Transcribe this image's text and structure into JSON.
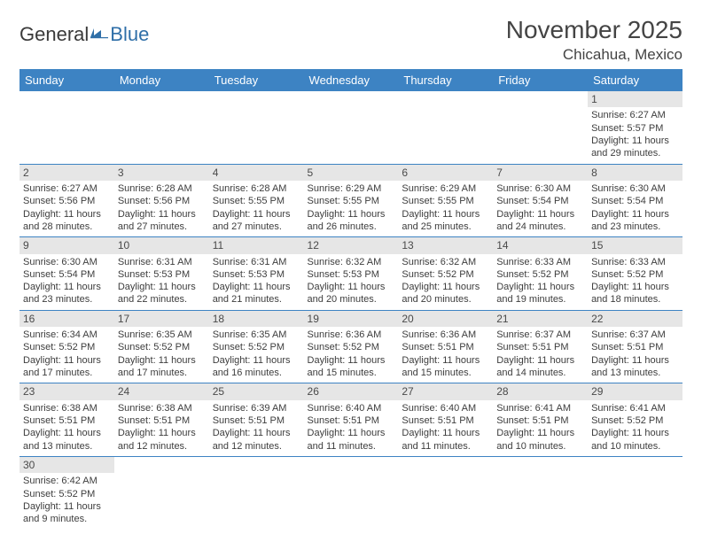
{
  "brand": {
    "part1": "General",
    "part2": "Blue"
  },
  "title": "November 2025",
  "location": "Chicahua, Mexico",
  "colors": {
    "header_bg": "#3d83c3",
    "header_text": "#ffffff",
    "daynum_bg": "#e6e6e6",
    "text": "#3d3d3d",
    "border": "#3d83c3",
    "logo_blue": "#2f6fa8"
  },
  "weekdays": [
    "Sunday",
    "Monday",
    "Tuesday",
    "Wednesday",
    "Thursday",
    "Friday",
    "Saturday"
  ],
  "weeks": [
    [
      null,
      null,
      null,
      null,
      null,
      null,
      {
        "n": "1",
        "sr": "Sunrise: 6:27 AM",
        "ss": "Sunset: 5:57 PM",
        "d1": "Daylight: 11 hours",
        "d2": "and 29 minutes."
      }
    ],
    [
      {
        "n": "2",
        "sr": "Sunrise: 6:27 AM",
        "ss": "Sunset: 5:56 PM",
        "d1": "Daylight: 11 hours",
        "d2": "and 28 minutes."
      },
      {
        "n": "3",
        "sr": "Sunrise: 6:28 AM",
        "ss": "Sunset: 5:56 PM",
        "d1": "Daylight: 11 hours",
        "d2": "and 27 minutes."
      },
      {
        "n": "4",
        "sr": "Sunrise: 6:28 AM",
        "ss": "Sunset: 5:55 PM",
        "d1": "Daylight: 11 hours",
        "d2": "and 27 minutes."
      },
      {
        "n": "5",
        "sr": "Sunrise: 6:29 AM",
        "ss": "Sunset: 5:55 PM",
        "d1": "Daylight: 11 hours",
        "d2": "and 26 minutes."
      },
      {
        "n": "6",
        "sr": "Sunrise: 6:29 AM",
        "ss": "Sunset: 5:55 PM",
        "d1": "Daylight: 11 hours",
        "d2": "and 25 minutes."
      },
      {
        "n": "7",
        "sr": "Sunrise: 6:30 AM",
        "ss": "Sunset: 5:54 PM",
        "d1": "Daylight: 11 hours",
        "d2": "and 24 minutes."
      },
      {
        "n": "8",
        "sr": "Sunrise: 6:30 AM",
        "ss": "Sunset: 5:54 PM",
        "d1": "Daylight: 11 hours",
        "d2": "and 23 minutes."
      }
    ],
    [
      {
        "n": "9",
        "sr": "Sunrise: 6:30 AM",
        "ss": "Sunset: 5:54 PM",
        "d1": "Daylight: 11 hours",
        "d2": "and 23 minutes."
      },
      {
        "n": "10",
        "sr": "Sunrise: 6:31 AM",
        "ss": "Sunset: 5:53 PM",
        "d1": "Daylight: 11 hours",
        "d2": "and 22 minutes."
      },
      {
        "n": "11",
        "sr": "Sunrise: 6:31 AM",
        "ss": "Sunset: 5:53 PM",
        "d1": "Daylight: 11 hours",
        "d2": "and 21 minutes."
      },
      {
        "n": "12",
        "sr": "Sunrise: 6:32 AM",
        "ss": "Sunset: 5:53 PM",
        "d1": "Daylight: 11 hours",
        "d2": "and 20 minutes."
      },
      {
        "n": "13",
        "sr": "Sunrise: 6:32 AM",
        "ss": "Sunset: 5:52 PM",
        "d1": "Daylight: 11 hours",
        "d2": "and 20 minutes."
      },
      {
        "n": "14",
        "sr": "Sunrise: 6:33 AM",
        "ss": "Sunset: 5:52 PM",
        "d1": "Daylight: 11 hours",
        "d2": "and 19 minutes."
      },
      {
        "n": "15",
        "sr": "Sunrise: 6:33 AM",
        "ss": "Sunset: 5:52 PM",
        "d1": "Daylight: 11 hours",
        "d2": "and 18 minutes."
      }
    ],
    [
      {
        "n": "16",
        "sr": "Sunrise: 6:34 AM",
        "ss": "Sunset: 5:52 PM",
        "d1": "Daylight: 11 hours",
        "d2": "and 17 minutes."
      },
      {
        "n": "17",
        "sr": "Sunrise: 6:35 AM",
        "ss": "Sunset: 5:52 PM",
        "d1": "Daylight: 11 hours",
        "d2": "and 17 minutes."
      },
      {
        "n": "18",
        "sr": "Sunrise: 6:35 AM",
        "ss": "Sunset: 5:52 PM",
        "d1": "Daylight: 11 hours",
        "d2": "and 16 minutes."
      },
      {
        "n": "19",
        "sr": "Sunrise: 6:36 AM",
        "ss": "Sunset: 5:52 PM",
        "d1": "Daylight: 11 hours",
        "d2": "and 15 minutes."
      },
      {
        "n": "20",
        "sr": "Sunrise: 6:36 AM",
        "ss": "Sunset: 5:51 PM",
        "d1": "Daylight: 11 hours",
        "d2": "and 15 minutes."
      },
      {
        "n": "21",
        "sr": "Sunrise: 6:37 AM",
        "ss": "Sunset: 5:51 PM",
        "d1": "Daylight: 11 hours",
        "d2": "and 14 minutes."
      },
      {
        "n": "22",
        "sr": "Sunrise: 6:37 AM",
        "ss": "Sunset: 5:51 PM",
        "d1": "Daylight: 11 hours",
        "d2": "and 13 minutes."
      }
    ],
    [
      {
        "n": "23",
        "sr": "Sunrise: 6:38 AM",
        "ss": "Sunset: 5:51 PM",
        "d1": "Daylight: 11 hours",
        "d2": "and 13 minutes."
      },
      {
        "n": "24",
        "sr": "Sunrise: 6:38 AM",
        "ss": "Sunset: 5:51 PM",
        "d1": "Daylight: 11 hours",
        "d2": "and 12 minutes."
      },
      {
        "n": "25",
        "sr": "Sunrise: 6:39 AM",
        "ss": "Sunset: 5:51 PM",
        "d1": "Daylight: 11 hours",
        "d2": "and 12 minutes."
      },
      {
        "n": "26",
        "sr": "Sunrise: 6:40 AM",
        "ss": "Sunset: 5:51 PM",
        "d1": "Daylight: 11 hours",
        "d2": "and 11 minutes."
      },
      {
        "n": "27",
        "sr": "Sunrise: 6:40 AM",
        "ss": "Sunset: 5:51 PM",
        "d1": "Daylight: 11 hours",
        "d2": "and 11 minutes."
      },
      {
        "n": "28",
        "sr": "Sunrise: 6:41 AM",
        "ss": "Sunset: 5:51 PM",
        "d1": "Daylight: 11 hours",
        "d2": "and 10 minutes."
      },
      {
        "n": "29",
        "sr": "Sunrise: 6:41 AM",
        "ss": "Sunset: 5:52 PM",
        "d1": "Daylight: 11 hours",
        "d2": "and 10 minutes."
      }
    ],
    [
      {
        "n": "30",
        "sr": "Sunrise: 6:42 AM",
        "ss": "Sunset: 5:52 PM",
        "d1": "Daylight: 11 hours",
        "d2": "and 9 minutes."
      },
      null,
      null,
      null,
      null,
      null,
      null
    ]
  ]
}
